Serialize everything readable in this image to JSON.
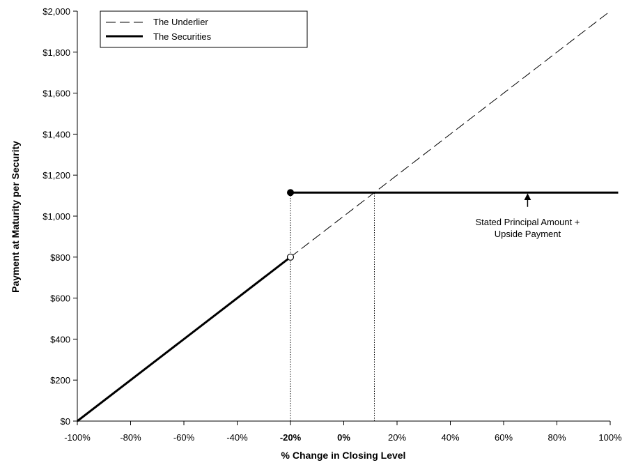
{
  "chart_data": {
    "type": "line",
    "xlabel": "% Change in Closing Level",
    "ylabel": "Payment at Maturity per Security",
    "xlim": [
      -100,
      100
    ],
    "ylim": [
      0,
      2000
    ],
    "x_ticks": [
      {
        "value": -100,
        "label": "-100%",
        "bold": false
      },
      {
        "value": -80,
        "label": "-80%",
        "bold": false
      },
      {
        "value": -60,
        "label": "-60%",
        "bold": false
      },
      {
        "value": -40,
        "label": "-40%",
        "bold": false
      },
      {
        "value": -20,
        "label": "-20%",
        "bold": true
      },
      {
        "value": 0,
        "label": "0%",
        "bold": true
      },
      {
        "value": 20,
        "label": "20%",
        "bold": false
      },
      {
        "value": 40,
        "label": "40%",
        "bold": false
      },
      {
        "value": 60,
        "label": "60%",
        "bold": false
      },
      {
        "value": 80,
        "label": "80%",
        "bold": false
      },
      {
        "value": 100,
        "label": "100%",
        "bold": false
      }
    ],
    "y_ticks": [
      {
        "value": 0,
        "label": "$0"
      },
      {
        "value": 200,
        "label": "$200"
      },
      {
        "value": 400,
        "label": "$400"
      },
      {
        "value": 600,
        "label": "$600"
      },
      {
        "value": 800,
        "label": "$800"
      },
      {
        "value": 1000,
        "label": "$1,000"
      },
      {
        "value": 1200,
        "label": "$1,200"
      },
      {
        "value": 1400,
        "label": "$1,400"
      },
      {
        "value": 1600,
        "label": "$1,600"
      },
      {
        "value": 1800,
        "label": "$1,800"
      },
      {
        "value": 2000,
        "label": "$2,000"
      }
    ],
    "grid": false,
    "legend_position": "top-left",
    "series": [
      {
        "name": "The Underlier",
        "style": "dashed",
        "color": "#000000",
        "x": [
          -20,
          100
        ],
        "y": [
          800,
          2000
        ]
      },
      {
        "name": "The Securities",
        "style": "solid-thick",
        "color": "#000000",
        "segments": [
          {
            "x": [
              -100,
              -20
            ],
            "y": [
              0,
              800
            ],
            "end_marker": "open"
          },
          {
            "x": [
              -20,
              103
            ],
            "y": [
              1115,
              1115
            ],
            "start_marker": "filled"
          }
        ]
      }
    ],
    "reference_lines": [
      {
        "x": -20,
        "y_from": 0,
        "y_to": 1115,
        "style": "dotted"
      },
      {
        "x": 11.5,
        "y_from": 0,
        "y_to": 1115,
        "style": "dotted"
      }
    ],
    "annotations": [
      {
        "lines": [
          "Stated Principal Amount +",
          "Upside Payment"
        ],
        "x": 69,
        "y": 955,
        "arrow_to": {
          "x": 69,
          "y": 1115
        },
        "arrow_from": {
          "x": 69,
          "y": 1045
        }
      }
    ]
  }
}
